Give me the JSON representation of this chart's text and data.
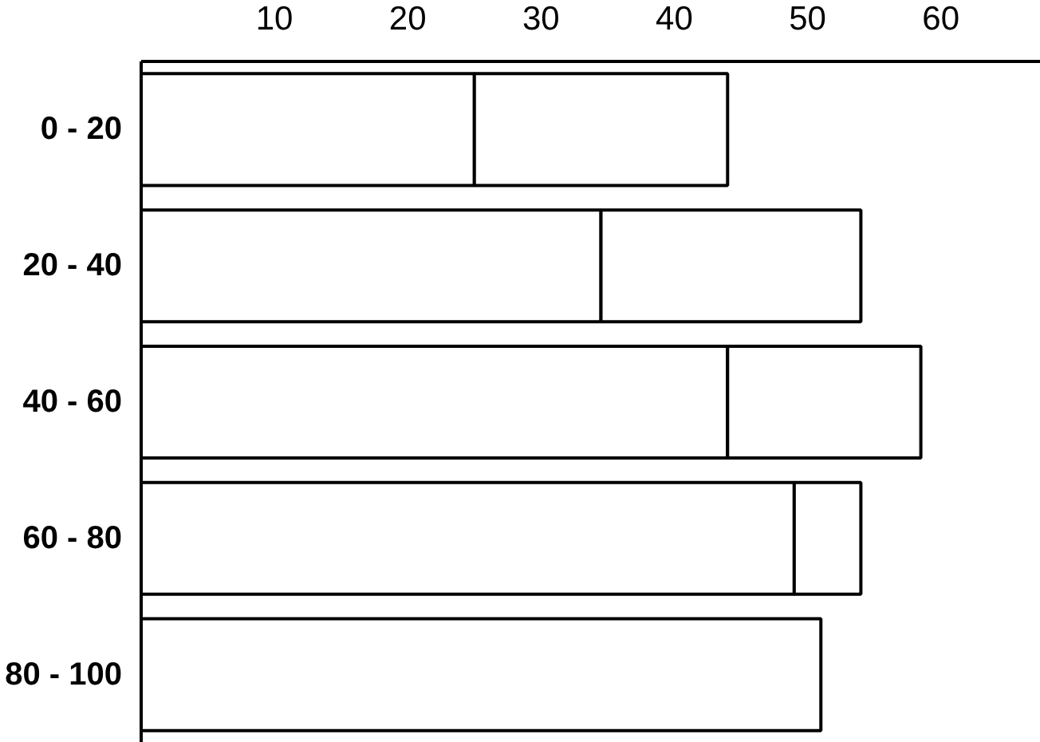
{
  "chart_data": {
    "type": "bar",
    "orientation": "horizontal",
    "stacked": true,
    "categories": [
      "0 - 20",
      "20 - 40",
      "40 - 60",
      "60 - 80",
      "80 - 100"
    ],
    "series": [
      {
        "color": "#ffffff",
        "values": [
          25,
          34.5,
          44,
          49,
          51
        ]
      },
      {
        "color": "#ffffff",
        "values": [
          19,
          19.5,
          14.5,
          5,
          null
        ]
      }
    ],
    "xlim": [
      0,
      67.5
    ],
    "xticks": [
      10,
      20,
      30,
      40,
      50,
      60
    ],
    "grid": false
  }
}
